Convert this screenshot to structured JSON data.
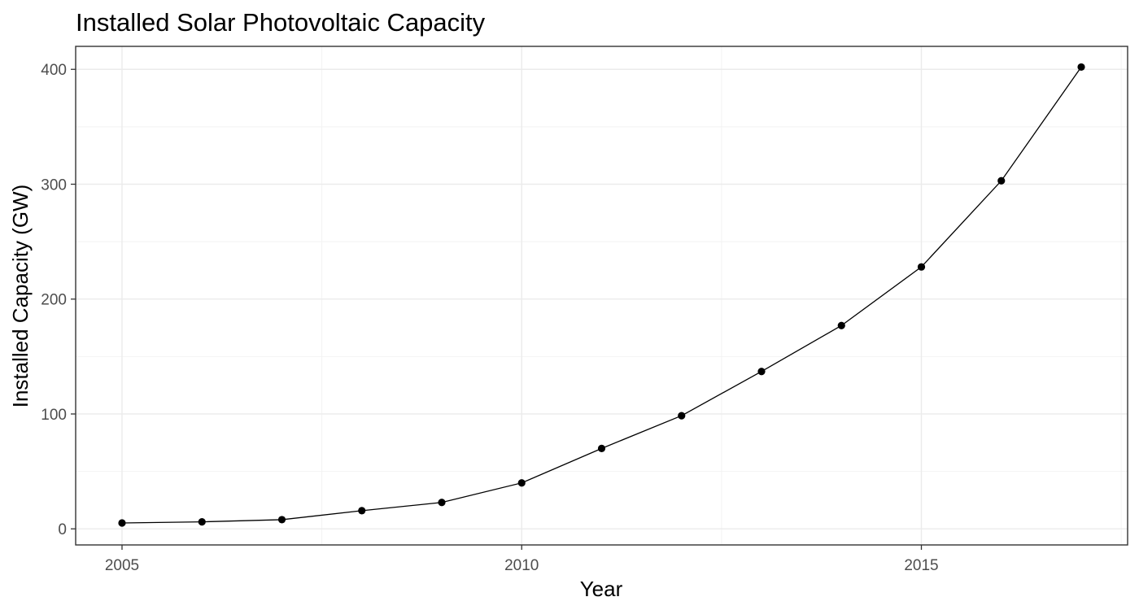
{
  "chart_data": {
    "type": "line",
    "title": "Installed Solar Photovoltaic Capacity",
    "xlabel": "Year",
    "ylabel": "Installed Capacity (GW)",
    "x": [
      2005,
      2006,
      2007,
      2008,
      2009,
      2010,
      2011,
      2012,
      2013,
      2014,
      2015,
      2016,
      2017
    ],
    "series": [
      {
        "values": [
          5.1,
          6.1,
          8.0,
          15.8,
          23.0,
          40.0,
          70.0,
          98.5,
          137.0,
          177.0,
          228.0,
          303.0,
          402.0
        ]
      }
    ],
    "xlim": [
      2004.42,
      2017.58
    ],
    "ylim": [
      -14,
      420
    ],
    "x_ticks": [
      2005,
      2010,
      2015
    ],
    "y_ticks": [
      0,
      100,
      200,
      300,
      400
    ],
    "x_tick_labels": [
      "2005",
      "2010",
      "2015"
    ],
    "y_tick_labels": [
      "0",
      "100",
      "200",
      "300",
      "400"
    ],
    "grid": true,
    "theme": "bw",
    "colors": {
      "line": "#000000",
      "points": "#000000",
      "grid": "#ebebeb",
      "border": "#333333",
      "tick_labels": "#4d4d4d"
    }
  }
}
